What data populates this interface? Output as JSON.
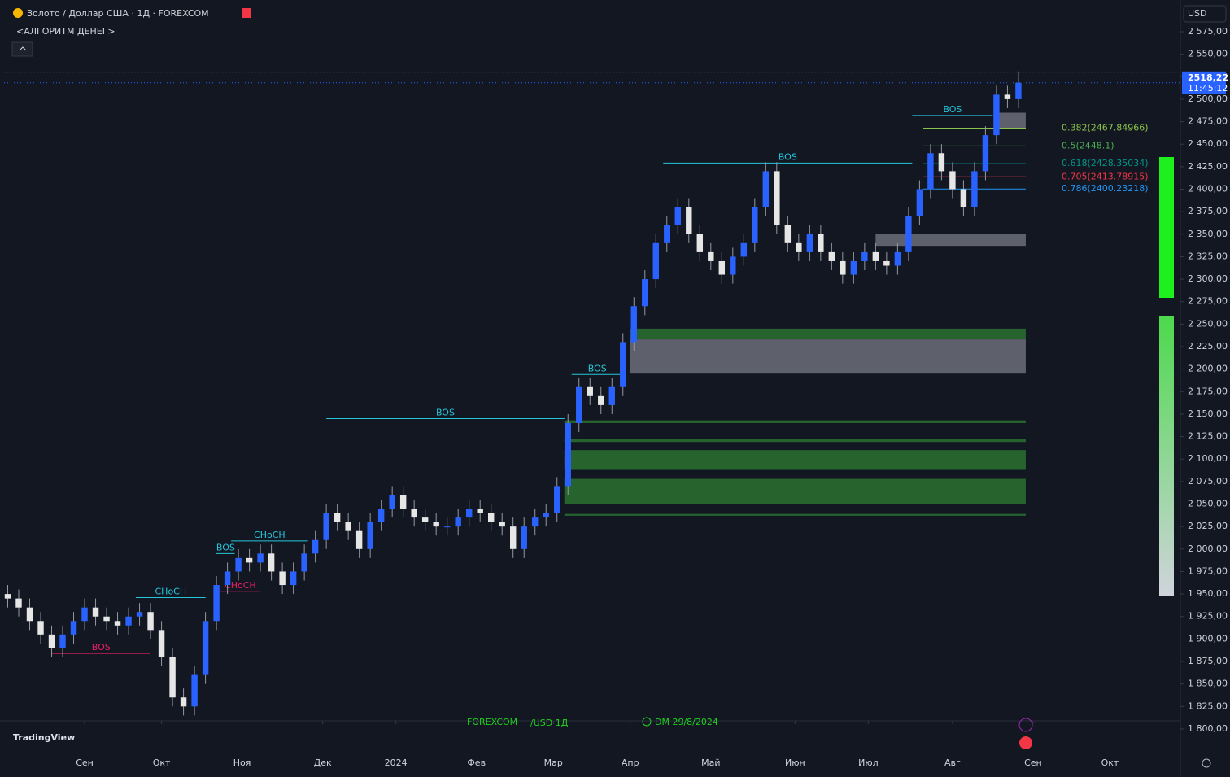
{
  "chart_data": {
    "type": "candlestick",
    "title": "Золото / Доллар США · 1Д · FOREXCOM",
    "subtitle": "<АЛГОРИТМ ДЕНЕГ>",
    "currency": "USD",
    "last_price_label": "2518,22",
    "countdown": "11:45:12",
    "watermark": {
      "exchange": "FOREXCOM",
      "symbol": "/USD 1Д",
      "date": "DM 29/8/2024"
    },
    "brand": "TradingView",
    "up_color": "#2962ff",
    "down_color": "#e6e6e6",
    "x": [
      0,
      3,
      6,
      9,
      12,
      15,
      18,
      21,
      24,
      27,
      30,
      33,
      36,
      39,
      42,
      45,
      48,
      51,
      54,
      57,
      60,
      63,
      66,
      69,
      72,
      75,
      78,
      81,
      84,
      87,
      90,
      93,
      96,
      99,
      102,
      105,
      108,
      111,
      114,
      117,
      120,
      123,
      126,
      129,
      132,
      135,
      138,
      141,
      144,
      147,
      150,
      153,
      156,
      159,
      162,
      165,
      168,
      171,
      174,
      177,
      180,
      183,
      186,
      189,
      192,
      195,
      198,
      201,
      204,
      207,
      210,
      213,
      216,
      219,
      222,
      225,
      228,
      231,
      234,
      237,
      240,
      243,
      246,
      249,
      252,
      255,
      258,
      261,
      264,
      267,
      270,
      273,
      276
    ],
    "open": [
      1950,
      1945,
      1935,
      1920,
      1905,
      1890,
      1905,
      1920,
      1935,
      1925,
      1920,
      1915,
      1925,
      1930,
      1910,
      1880,
      1835,
      1825,
      1860,
      1920,
      1960,
      1975,
      1990,
      1985,
      1995,
      1975,
      1960,
      1975,
      1995,
      2010,
      2040,
      2030,
      2020,
      2000,
      2030,
      2045,
      2060,
      2045,
      2035,
      2030,
      2025,
      2025,
      2035,
      2045,
      2040,
      2030,
      2025,
      2000,
      2025,
      2035,
      2040,
      2070,
      2140,
      2180,
      2170,
      2160,
      2180,
      2230,
      2270,
      2300,
      2340,
      2360,
      2380,
      2350,
      2330,
      2320,
      2305,
      2325,
      2340,
      2380,
      2420,
      2360,
      2340,
      2330,
      2350,
      2330,
      2320,
      2305,
      2320,
      2330,
      2320,
      2315,
      2330,
      2370,
      2400,
      2440,
      2420,
      2400,
      2380,
      2420,
      2460,
      2505,
      2500
    ],
    "high": [
      1960,
      1955,
      1945,
      1930,
      1915,
      1915,
      1930,
      1945,
      1945,
      1935,
      1930,
      1935,
      1940,
      1940,
      1920,
      1890,
      1845,
      1870,
      1930,
      1970,
      1985,
      2000,
      2000,
      2005,
      2005,
      1985,
      1985,
      2005,
      2020,
      2050,
      2050,
      2040,
      2030,
      2040,
      2055,
      2070,
      2070,
      2055,
      2045,
      2040,
      2035,
      2045,
      2055,
      2055,
      2050,
      2040,
      2035,
      2035,
      2045,
      2050,
      2080,
      2150,
      2190,
      2190,
      2180,
      2190,
      2240,
      2280,
      2310,
      2350,
      2370,
      2390,
      2390,
      2360,
      2340,
      2330,
      2335,
      2350,
      2390,
      2430,
      2430,
      2370,
      2350,
      2360,
      2360,
      2340,
      2330,
      2330,
      2340,
      2340,
      2330,
      2340,
      2380,
      2410,
      2450,
      2450,
      2430,
      2410,
      2430,
      2470,
      2515,
      2515,
      2531
    ],
    "low": [
      1935,
      1925,
      1910,
      1895,
      1880,
      1880,
      1895,
      1910,
      1915,
      1910,
      1905,
      1905,
      1915,
      1900,
      1870,
      1825,
      1815,
      1815,
      1850,
      1910,
      1950,
      1965,
      1975,
      1975,
      1965,
      1950,
      1950,
      1965,
      1985,
      2000,
      2020,
      2010,
      1990,
      1990,
      2020,
      2035,
      2035,
      2025,
      2020,
      2015,
      2015,
      2015,
      2025,
      2030,
      2020,
      2015,
      1990,
      1990,
      2015,
      2025,
      2030,
      2060,
      2130,
      2160,
      2150,
      2150,
      2170,
      2220,
      2260,
      2290,
      2330,
      2350,
      2340,
      2320,
      2310,
      2295,
      2295,
      2315,
      2330,
      2370,
      2350,
      2330,
      2320,
      2320,
      2320,
      2310,
      2295,
      2295,
      2310,
      2310,
      2305,
      2305,
      2320,
      2360,
      2390,
      2410,
      2390,
      2370,
      2370,
      2410,
      2450,
      2490,
      2490
    ],
    "close": [
      1945,
      1935,
      1920,
      1905,
      1890,
      1905,
      1920,
      1935,
      1925,
      1920,
      1915,
      1925,
      1930,
      1910,
      1880,
      1835,
      1825,
      1860,
      1920,
      1960,
      1975,
      1990,
      1985,
      1995,
      1975,
      1960,
      1975,
      1995,
      2010,
      2040,
      2030,
      2020,
      2000,
      2030,
      2045,
      2060,
      2045,
      2035,
      2030,
      2025,
      2025,
      2035,
      2045,
      2040,
      2030,
      2025,
      2000,
      2025,
      2035,
      2040,
      2070,
      2140,
      2180,
      2170,
      2160,
      2180,
      2230,
      2270,
      2300,
      2340,
      2360,
      2380,
      2350,
      2330,
      2320,
      2305,
      2325,
      2340,
      2380,
      2420,
      2360,
      2340,
      2330,
      2350,
      2330,
      2320,
      2305,
      2320,
      2330,
      2320,
      2315,
      2330,
      2370,
      2400,
      2440,
      2420,
      2400,
      2380,
      2420,
      2460,
      2505,
      2500,
      2518.22
    ],
    "xlim": [
      -1,
      320
    ],
    "xticks": [
      {
        "value": 21,
        "label": "Сен"
      },
      {
        "value": 42,
        "label": "Окт"
      },
      {
        "value": 64,
        "label": "Ноя"
      },
      {
        "value": 86,
        "label": "Дек"
      },
      {
        "value": 106,
        "label": "2024"
      },
      {
        "value": 128,
        "label": "Фев"
      },
      {
        "value": 149,
        "label": "Мар"
      },
      {
        "value": 170,
        "label": "Апр"
      },
      {
        "value": 192,
        "label": "Май"
      },
      {
        "value": 215,
        "label": "Июн"
      },
      {
        "value": 235,
        "label": "Июл"
      },
      {
        "value": 258,
        "label": "Авг"
      },
      {
        "value": 280,
        "label": "Сен"
      },
      {
        "value": 301,
        "label": "Окт"
      }
    ],
    "ylim": [
      1775,
      2597
    ],
    "yticks": [
      {
        "value": 2575,
        "label": "2 575,00"
      },
      {
        "value": 2550,
        "label": "2 550,00"
      },
      {
        "value": 2525,
        "label": "2 525,00"
      },
      {
        "value": 2500,
        "label": "2 500,00"
      },
      {
        "value": 2475,
        "label": "2 475,00"
      },
      {
        "value": 2450,
        "label": "2 450,00"
      },
      {
        "value": 2425,
        "label": "2 425,00"
      },
      {
        "value": 2400,
        "label": "2 400,00"
      },
      {
        "value": 2375,
        "label": "2 375,00"
      },
      {
        "value": 2350,
        "label": "2 350,00"
      },
      {
        "value": 2325,
        "label": "2 325,00"
      },
      {
        "value": 2300,
        "label": "2 300,00"
      },
      {
        "value": 2275,
        "label": "2 275,00"
      },
      {
        "value": 2250,
        "label": "2 250,00"
      },
      {
        "value": 2225,
        "label": "2 225,00"
      },
      {
        "value": 2200,
        "label": "2 200,00"
      },
      {
        "value": 2175,
        "label": "2 175,00"
      },
      {
        "value": 2150,
        "label": "2 150,00"
      },
      {
        "value": 2125,
        "label": "2 125,00"
      },
      {
        "value": 2100,
        "label": "2 100,00"
      },
      {
        "value": 2075,
        "label": "2 075,00"
      },
      {
        "value": 2050,
        "label": "2 050,00"
      },
      {
        "value": 2025,
        "label": "2 025,00"
      },
      {
        "value": 2000,
        "label": "2 000,00"
      },
      {
        "value": 1975,
        "label": "1 975,00"
      },
      {
        "value": 1950,
        "label": "1 950,00"
      },
      {
        "value": 1925,
        "label": "1 925,00"
      },
      {
        "value": 1900,
        "label": "1 900,00"
      },
      {
        "value": 1875,
        "label": "1 875,00"
      },
      {
        "value": 1850,
        "label": "1 850,00"
      },
      {
        "value": 1825,
        "label": "1 825,00"
      },
      {
        "value": 1800,
        "label": "1 800,00"
      }
    ],
    "structures": [
      {
        "label": "BOS",
        "price": 2482,
        "x0": 247,
        "x1": 269,
        "color": "#26c6da"
      },
      {
        "label": "BOS",
        "price": 2429,
        "x0": 179,
        "x1": 247,
        "color": "#26c6da"
      },
      {
        "label": "BOS",
        "price": 2194,
        "x0": 154,
        "x1": 168,
        "color": "#26c6da"
      },
      {
        "label": "BOS",
        "price": 2145,
        "x0": 87,
        "x1": 152,
        "color": "#26c6da"
      },
      {
        "label": "CHoCH",
        "price": 2009,
        "x0": 61,
        "x1": 82,
        "color": "#26c6da"
      },
      {
        "label": "BOS",
        "price": 1995,
        "x0": 57,
        "x1": 62,
        "color": "#26c6da"
      },
      {
        "label": "CHoCH",
        "price": 1946,
        "x0": 35,
        "x1": 54,
        "color": "#26c6da"
      },
      {
        "label": "CHoCH",
        "price": 1953,
        "x0": 58,
        "x1": 69,
        "color": "#e91e63"
      },
      {
        "label": "BOS",
        "price": 1884,
        "x0": 12,
        "x1": 39,
        "color": "#e91e63"
      }
    ],
    "zones": [
      {
        "from": 2245,
        "to": 2233,
        "x0": 170,
        "color": "#2e7d32"
      },
      {
        "from": 2233,
        "to": 2195,
        "x0": 170,
        "color": "#787b86"
      },
      {
        "from": 2143,
        "to": 2140,
        "x0": 152,
        "color": "#2e7d32"
      },
      {
        "from": 2122,
        "to": 2119,
        "x0": 152,
        "color": "#2e7d32"
      },
      {
        "from": 2110,
        "to": 2088,
        "x0": 152,
        "color": "#2e7d32"
      },
      {
        "from": 2078,
        "to": 2050,
        "x0": 152,
        "color": "#2e7d32"
      },
      {
        "from": 2039,
        "to": 2037,
        "x0": 152,
        "color": "#2e7d32"
      },
      {
        "from": 2350,
        "to": 2337,
        "x0": 237,
        "color": "#787b86"
      },
      {
        "from": 2485,
        "to": 2468,
        "x0": 270,
        "color": "#787b86"
      }
    ],
    "fib_levels": [
      {
        "label": "0.382(2467.84966)",
        "price": 2467.84966,
        "color": "#8bc34a"
      },
      {
        "label": "0.5(2448.1)",
        "price": 2448.1,
        "color": "#4caf50"
      },
      {
        "label": "0.618(2428.35034)",
        "price": 2428.35034,
        "color": "#009688"
      },
      {
        "label": "0.705(2413.78915)",
        "price": 2413.78915,
        "color": "#f23645"
      },
      {
        "label": "0.786(2400.23218)",
        "price": 2400.23218,
        "color": "#2196f3"
      }
    ]
  }
}
